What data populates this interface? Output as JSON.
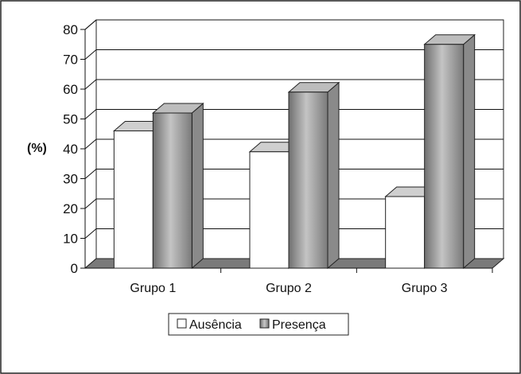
{
  "chart_data": {
    "type": "bar",
    "categories": [
      "Grupo 1",
      "Grupo 2",
      "Grupo 3"
    ],
    "series": [
      {
        "name": "Ausência",
        "values": [
          46,
          39,
          24
        ]
      },
      {
        "name": "Presença",
        "values": [
          52,
          59,
          75
        ]
      }
    ],
    "ylabel": "(%)",
    "ylim": [
      0,
      80
    ],
    "yticks": [
      "0",
      "10",
      "20",
      "30",
      "40",
      "50",
      "60",
      "70",
      "80"
    ],
    "grid": true,
    "legend": "bottom",
    "style": "3d-bar",
    "colors": {
      "Ausência": "#ffffff",
      "Presença": "#9a9a9a",
      "floor": "#7a7a7a",
      "grid": "#000000"
    }
  }
}
